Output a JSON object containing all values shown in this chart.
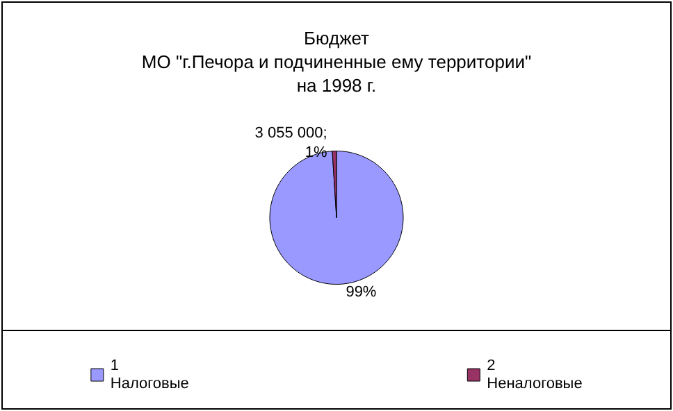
{
  "chart_data": {
    "type": "pie",
    "title": "Бюджет\nМО \"г.Печора и подчиненные ему территории\"\nна 1998 г.",
    "categories": [
      "1\nНалоговые",
      "2\nНеналоговые"
    ],
    "values": [
      99,
      1
    ],
    "colors": [
      "#9999ff",
      "#993366"
    ],
    "value_labels": [
      "99%",
      "3 055 000;\n1%"
    ],
    "legend": "bottom"
  }
}
